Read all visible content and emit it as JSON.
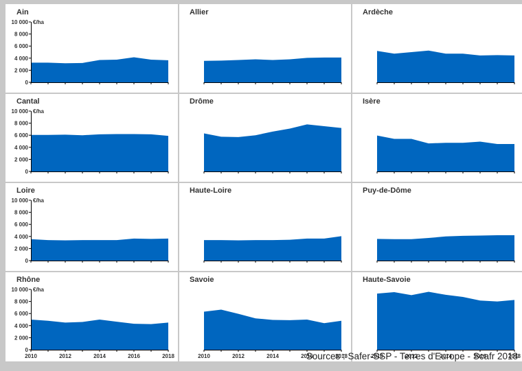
{
  "unit": "€/ha",
  "y_ticks": [
    "0",
    "2 000",
    "4 000",
    "6 000",
    "8 000",
    "10 000"
  ],
  "x_ticks": [
    "2010",
    "2012",
    "2014",
    "2016",
    "2018"
  ],
  "source": "Sources : Safer-SSP - Terres d'Europe - Scafr 2018",
  "colors": {
    "area": "#0066bf",
    "background": "#ffffff",
    "divider": "#c8c8c8",
    "axis": "#000000"
  },
  "chart_data": [
    {
      "type": "area",
      "title": "Ain",
      "x": [
        2010,
        2011,
        2012,
        2013,
        2014,
        2015,
        2016,
        2017,
        2018
      ],
      "values": [
        3250,
        3250,
        3150,
        3200,
        3700,
        3750,
        4150,
        3750,
        3650
      ],
      "ylim": [
        0,
        10000
      ]
    },
    {
      "type": "area",
      "title": "Allier",
      "x": [
        2010,
        2011,
        2012,
        2013,
        2014,
        2015,
        2016,
        2017,
        2018
      ],
      "values": [
        3550,
        3600,
        3700,
        3800,
        3700,
        3800,
        4050,
        4100,
        4100
      ],
      "ylim": [
        0,
        10000
      ]
    },
    {
      "type": "area",
      "title": "Ardèche",
      "x": [
        2010,
        2011,
        2012,
        2013,
        2014,
        2015,
        2016,
        2017,
        2018
      ],
      "values": [
        5200,
        4750,
        5000,
        5250,
        4750,
        4750,
        4450,
        4500,
        4450
      ],
      "ylim": [
        0,
        10000
      ]
    },
    {
      "type": "area",
      "title": "Cantal",
      "x": [
        2010,
        2011,
        2012,
        2013,
        2014,
        2015,
        2016,
        2017,
        2018
      ],
      "values": [
        6050,
        6050,
        6100,
        6000,
        6150,
        6200,
        6200,
        6150,
        5900
      ],
      "ylim": [
        0,
        10000
      ]
    },
    {
      "type": "area",
      "title": "Drôme",
      "x": [
        2010,
        2011,
        2012,
        2013,
        2014,
        2015,
        2016,
        2017,
        2018
      ],
      "values": [
        6300,
        5750,
        5700,
        6000,
        6600,
        7100,
        7800,
        7500,
        7200
      ],
      "ylim": [
        0,
        10000
      ]
    },
    {
      "type": "area",
      "title": "Isère",
      "x": [
        2010,
        2011,
        2012,
        2013,
        2014,
        2015,
        2016,
        2017,
        2018
      ],
      "values": [
        5950,
        5400,
        5400,
        4650,
        4750,
        4750,
        4950,
        4550,
        4550
      ],
      "ylim": [
        0,
        10000
      ]
    },
    {
      "type": "area",
      "title": "Loire",
      "x": [
        2010,
        2011,
        2012,
        2013,
        2014,
        2015,
        2016,
        2017,
        2018
      ],
      "values": [
        3550,
        3400,
        3350,
        3400,
        3400,
        3400,
        3650,
        3600,
        3650
      ],
      "ylim": [
        0,
        10000
      ]
    },
    {
      "type": "area",
      "title": "Haute-Loire",
      "x": [
        2010,
        2011,
        2012,
        2013,
        2014,
        2015,
        2016,
        2017,
        2018
      ],
      "values": [
        3400,
        3400,
        3350,
        3400,
        3400,
        3450,
        3650,
        3650,
        4050
      ],
      "ylim": [
        0,
        10000
      ]
    },
    {
      "type": "area",
      "title": "Puy-de-Dôme",
      "x": [
        2010,
        2011,
        2012,
        2013,
        2014,
        2015,
        2016,
        2017,
        2018
      ],
      "values": [
        3600,
        3550,
        3550,
        3750,
        4000,
        4100,
        4150,
        4200,
        4200
      ],
      "ylim": [
        0,
        10000
      ]
    },
    {
      "type": "area",
      "title": "Rhône",
      "x": [
        2010,
        2011,
        2012,
        2013,
        2014,
        2015,
        2016,
        2017,
        2018
      ],
      "values": [
        5000,
        4800,
        4500,
        4600,
        5000,
        4650,
        4300,
        4250,
        4500
      ],
      "ylim": [
        0,
        10000
      ]
    },
    {
      "type": "area",
      "title": "Savoie",
      "x": [
        2010,
        2011,
        2012,
        2013,
        2014,
        2015,
        2016,
        2017,
        2018
      ],
      "values": [
        6300,
        6650,
        5950,
        5200,
        4950,
        4900,
        5000,
        4400,
        4800
      ],
      "ylim": [
        0,
        10000
      ]
    },
    {
      "type": "area",
      "title": "Haute-Savoie",
      "x": [
        2010,
        2011,
        2012,
        2013,
        2014,
        2015,
        2016,
        2017,
        2018
      ],
      "values": [
        9300,
        9550,
        9050,
        9600,
        9100,
        8750,
        8150,
        8000,
        8250
      ],
      "ylim": [
        0,
        10000
      ]
    }
  ]
}
